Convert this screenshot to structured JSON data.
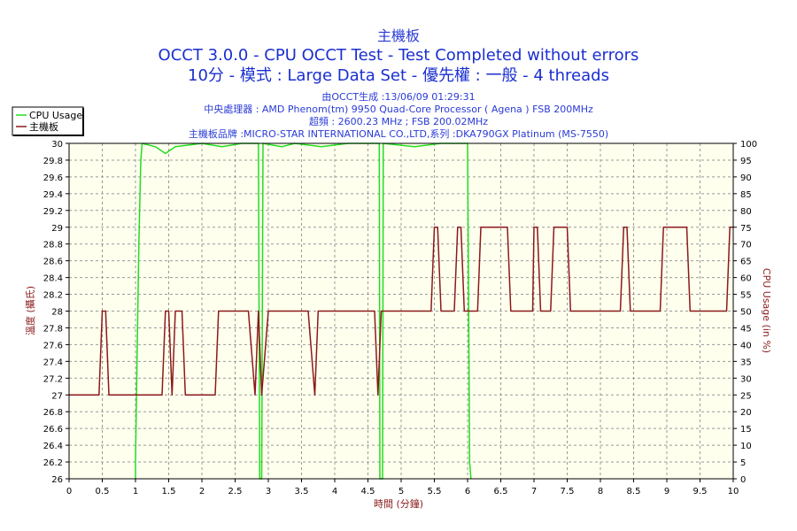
{
  "chart_data": {
    "type": "line",
    "title": "主機板",
    "subtitle_lines": [
      "OCCT 3.0.0 - CPU OCCT Test - Test Completed without errors",
      "10分 - 模式 : Large Data Set - 優先權 : 一般 - 4 threads"
    ],
    "info_lines": [
      "由OCCT生成 :13/06/09 01:29:31",
      "中央處理器 : AMD Phenom(tm) 9950 Quad-Core Processor ( Agena ) FSB 200MHz",
      "超頻 : 2600.23 MHz ; FSB 200.02MHz",
      "主機板品牌 :MICRO-STAR INTERNATIONAL CO.,LTD,系列 :DKA790GX Platinum (MS-7550)"
    ],
    "xlabel": "時間 (分鐘)",
    "ylabel_left": "溫度 (攝氏)",
    "ylabel_right": "CPU Usage (in %)",
    "xlim": [
      0,
      10
    ],
    "ylim_left": [
      26,
      30
    ],
    "ylim_right": [
      0,
      100
    ],
    "x_ticks": [
      "0",
      "0.5",
      "1",
      "1.5",
      "2",
      "2.5",
      "3",
      "3.5",
      "4",
      "4.5",
      "5",
      "5.5",
      "6",
      "6.5",
      "7",
      "7.5",
      "8",
      "8.5",
      "9",
      "9.5",
      "10"
    ],
    "y_left_ticks": [
      "26",
      "26.2",
      "26.4",
      "26.6",
      "26.8",
      "27",
      "27.2",
      "27.4",
      "27.6",
      "27.8",
      "28",
      "28.2",
      "28.4",
      "28.6",
      "28.8",
      "29",
      "29.2",
      "29.4",
      "29.6",
      "29.8",
      "30"
    ],
    "y_right_ticks": [
      "0",
      "5",
      "10",
      "15",
      "20",
      "25",
      "30",
      "35",
      "40",
      "45",
      "50",
      "55",
      "60",
      "65",
      "70",
      "75",
      "80",
      "85",
      "90",
      "95",
      "100"
    ],
    "grid": true,
    "legend_position": "top-left",
    "series": [
      {
        "name": "CPU Usage",
        "axis": "right",
        "color": "#22dd22",
        "points": [
          [
            1.0,
            0
          ],
          [
            1.0,
            5
          ],
          [
            1.03,
            45
          ],
          [
            1.05,
            70
          ],
          [
            1.08,
            95
          ],
          [
            1.1,
            100
          ],
          [
            1.3,
            99
          ],
          [
            1.45,
            97
          ],
          [
            1.6,
            99
          ],
          [
            2.0,
            100
          ],
          [
            2.3,
            99
          ],
          [
            2.6,
            100
          ],
          [
            2.85,
            100
          ],
          [
            2.87,
            0
          ],
          [
            2.9,
            0
          ],
          [
            2.92,
            100
          ],
          [
            3.2,
            99
          ],
          [
            3.4,
            100
          ],
          [
            3.8,
            99
          ],
          [
            4.2,
            100
          ],
          [
            4.67,
            100
          ],
          [
            4.68,
            0
          ],
          [
            4.72,
            0
          ],
          [
            4.73,
            100
          ],
          [
            5.2,
            99
          ],
          [
            5.6,
            100
          ],
          [
            6.0,
            100
          ],
          [
            6.03,
            5
          ],
          [
            6.05,
            0
          ]
        ]
      },
      {
        "name": "主機板",
        "axis": "left",
        "color": "#8b1a1a",
        "points": [
          [
            0,
            27
          ],
          [
            0.45,
            27
          ],
          [
            0.5,
            28
          ],
          [
            0.55,
            28
          ],
          [
            0.6,
            27
          ],
          [
            1.4,
            27
          ],
          [
            1.45,
            28
          ],
          [
            1.5,
            28
          ],
          [
            1.55,
            27
          ],
          [
            1.6,
            28
          ],
          [
            1.7,
            28
          ],
          [
            1.75,
            27
          ],
          [
            2.2,
            27
          ],
          [
            2.25,
            28
          ],
          [
            2.7,
            28
          ],
          [
            2.8,
            27
          ],
          [
            2.85,
            28
          ],
          [
            2.9,
            27
          ],
          [
            3.0,
            28
          ],
          [
            3.6,
            28
          ],
          [
            3.7,
            27
          ],
          [
            3.75,
            28
          ],
          [
            4.6,
            28
          ],
          [
            4.65,
            27
          ],
          [
            4.7,
            28
          ],
          [
            5.45,
            28
          ],
          [
            5.5,
            29
          ],
          [
            5.55,
            29
          ],
          [
            5.6,
            28
          ],
          [
            5.8,
            28
          ],
          [
            5.85,
            29
          ],
          [
            5.9,
            29
          ],
          [
            5.95,
            28
          ],
          [
            6.15,
            28
          ],
          [
            6.2,
            29
          ],
          [
            6.6,
            29
          ],
          [
            6.65,
            28
          ],
          [
            6.98,
            28
          ],
          [
            7.0,
            29
          ],
          [
            7.05,
            29
          ],
          [
            7.1,
            28
          ],
          [
            7.25,
            28
          ],
          [
            7.3,
            29
          ],
          [
            7.5,
            29
          ],
          [
            7.55,
            28
          ],
          [
            8.3,
            28
          ],
          [
            8.35,
            29
          ],
          [
            8.4,
            29
          ],
          [
            8.45,
            28
          ],
          [
            8.9,
            28
          ],
          [
            8.95,
            29
          ],
          [
            9.3,
            29
          ],
          [
            9.35,
            28
          ],
          [
            9.9,
            28
          ],
          [
            9.95,
            29
          ],
          [
            10,
            29
          ]
        ]
      }
    ]
  }
}
